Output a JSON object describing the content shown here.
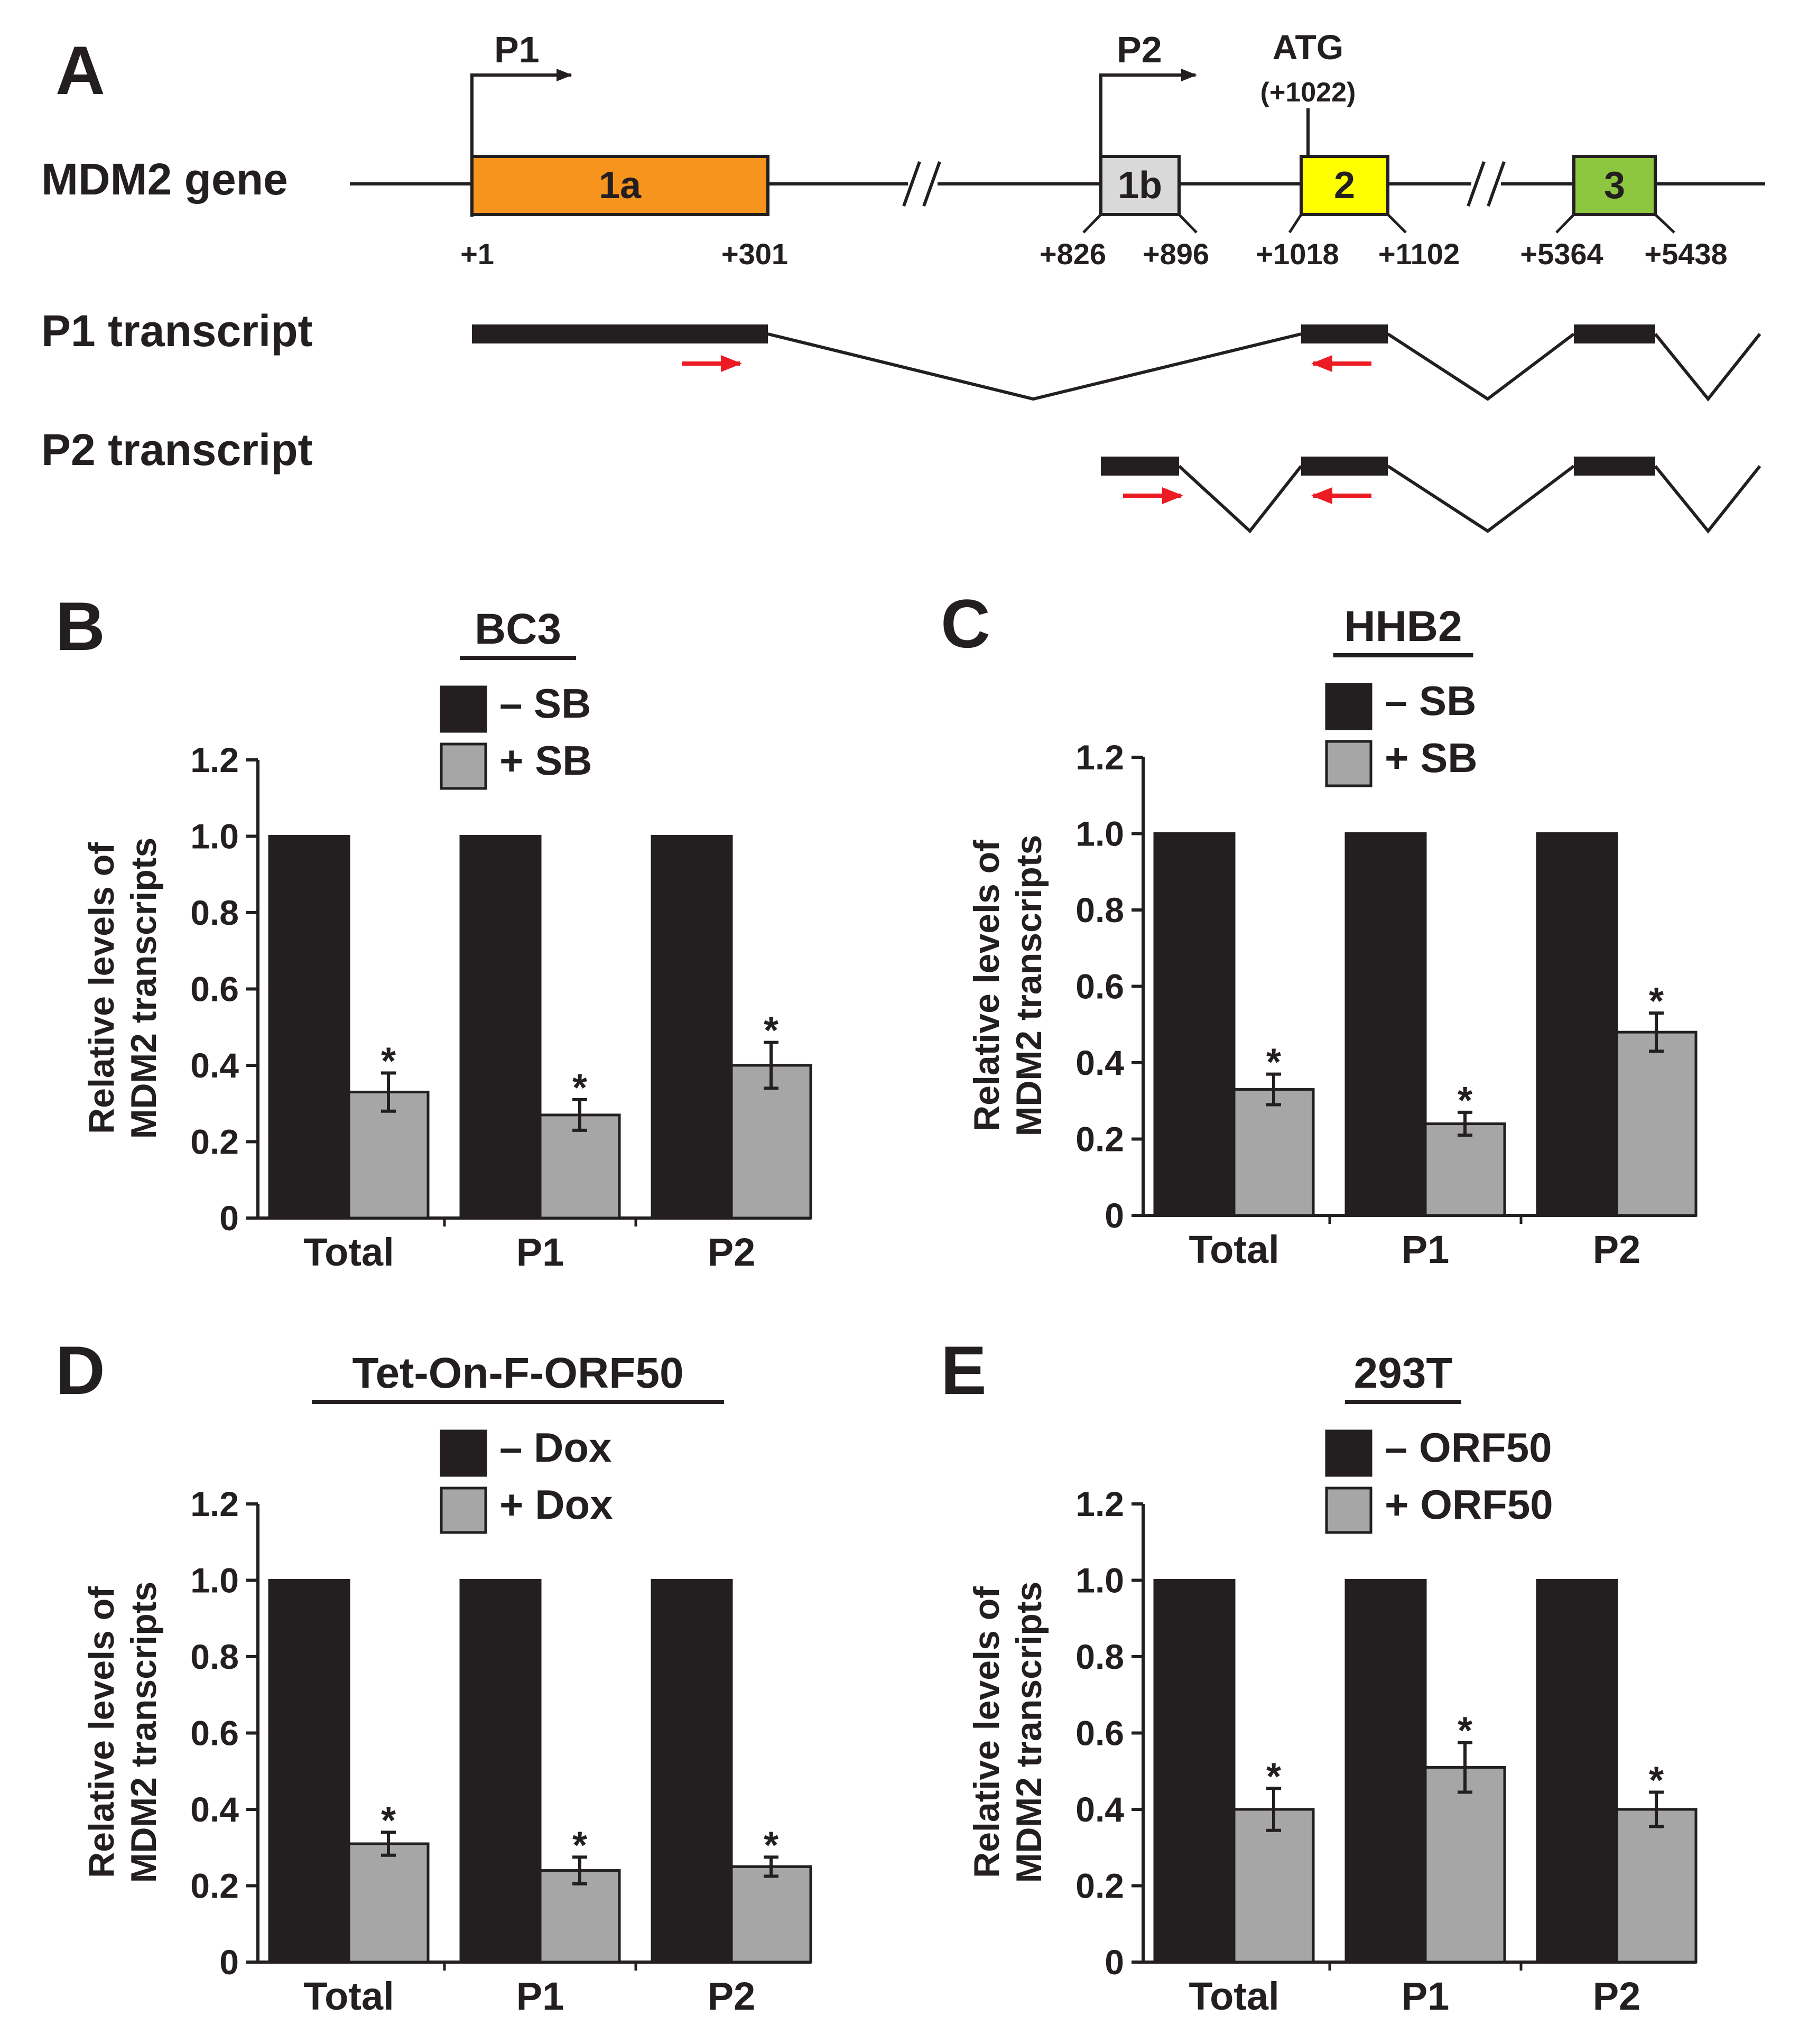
{
  "panel_a": {
    "letter": "A",
    "gene_label": "MDM2 gene",
    "promoters": [
      {
        "name": "P1"
      },
      {
        "name": "P2"
      }
    ],
    "atg": {
      "label": "ATG",
      "position": "(+1022)"
    },
    "exons": [
      {
        "name": "1a",
        "color": "#f7941d",
        "start": "+1",
        "end": "+301"
      },
      {
        "name": "1b",
        "color": "#d9d9d9",
        "start": "+826",
        "end": "+896"
      },
      {
        "name": "2",
        "color": "#ffff00",
        "start": "+1018",
        "end": "+1102"
      },
      {
        "name": "3",
        "color": "#8dc63f",
        "start": "+5364",
        "end": "+5438"
      }
    ],
    "transcripts": [
      {
        "label": "P1 transcript"
      },
      {
        "label": "P2 transcript"
      }
    ],
    "primer_color": "#ed1c24"
  },
  "chart_data": [
    {
      "panel": "B",
      "type": "bar",
      "title": "BC3",
      "categories": [
        "Total",
        "P1",
        "P2"
      ],
      "series": [
        {
          "name": "– SB",
          "color": "#231f20",
          "values": [
            1.0,
            1.0,
            1.0
          ],
          "errors": [
            0,
            0,
            0
          ],
          "significant": [
            false,
            false,
            false
          ]
        },
        {
          "name": "+ SB",
          "color": "#a6a6a6",
          "values": [
            0.33,
            0.27,
            0.4
          ],
          "errors": [
            0.05,
            0.04,
            0.06
          ],
          "significant": [
            true,
            true,
            true
          ]
        }
      ],
      "ylabel": [
        "Relative levels of",
        "MDM2 transcripts"
      ],
      "ylim": [
        0,
        1.2
      ],
      "yticks": [
        0,
        0.2,
        0.4,
        0.6,
        0.8,
        1.0,
        1.2
      ],
      "ytick_labels": [
        "0",
        "0.2",
        "0.4",
        "0.6",
        "0.8",
        "1.0",
        "1.2"
      ],
      "significance_mark": "*"
    },
    {
      "panel": "C",
      "type": "bar",
      "title": "HHB2",
      "categories": [
        "Total",
        "P1",
        "P2"
      ],
      "series": [
        {
          "name": "– SB",
          "color": "#231f20",
          "values": [
            1.0,
            1.0,
            1.0
          ],
          "errors": [
            0,
            0,
            0
          ],
          "significant": [
            false,
            false,
            false
          ]
        },
        {
          "name": "+ SB",
          "color": "#a6a6a6",
          "values": [
            0.33,
            0.24,
            0.48
          ],
          "errors": [
            0.04,
            0.03,
            0.05
          ],
          "significant": [
            true,
            true,
            true
          ]
        }
      ],
      "ylabel": [
        "Relative levels of",
        "MDM2 transcripts"
      ],
      "ylim": [
        0,
        1.2
      ],
      "yticks": [
        0,
        0.2,
        0.4,
        0.6,
        0.8,
        1.0,
        1.2
      ],
      "ytick_labels": [
        "0",
        "0.2",
        "0.4",
        "0.6",
        "0.8",
        "1.0",
        "1.2"
      ],
      "significance_mark": "*"
    },
    {
      "panel": "D",
      "type": "bar",
      "title": "Tet-On-F-ORF50",
      "categories": [
        "Total",
        "P1",
        "P2"
      ],
      "series": [
        {
          "name": "– Dox",
          "color": "#231f20",
          "values": [
            1.0,
            1.0,
            1.0
          ],
          "errors": [
            0,
            0,
            0
          ],
          "significant": [
            false,
            false,
            false
          ]
        },
        {
          "name": "+ Dox",
          "color": "#a6a6a6",
          "values": [
            0.31,
            0.24,
            0.25
          ],
          "errors": [
            0.03,
            0.035,
            0.025
          ],
          "significant": [
            true,
            true,
            true
          ]
        }
      ],
      "ylabel": [
        "Relative levels of",
        "MDM2 transcripts"
      ],
      "ylim": [
        0,
        1.2
      ],
      "yticks": [
        0,
        0.2,
        0.4,
        0.6,
        0.8,
        1.0,
        1.2
      ],
      "ytick_labels": [
        "0",
        "0.2",
        "0.4",
        "0.6",
        "0.8",
        "1.0",
        "1.2"
      ],
      "significance_mark": "*"
    },
    {
      "panel": "E",
      "type": "bar",
      "title": "293T",
      "categories": [
        "Total",
        "P1",
        "P2"
      ],
      "series": [
        {
          "name": "– ORF50",
          "color": "#231f20",
          "values": [
            1.0,
            1.0,
            1.0
          ],
          "errors": [
            0,
            0,
            0
          ],
          "significant": [
            false,
            false,
            false
          ]
        },
        {
          "name": "+ ORF50",
          "color": "#a6a6a6",
          "values": [
            0.4,
            0.51,
            0.4
          ],
          "errors": [
            0.055,
            0.065,
            0.045
          ],
          "significant": [
            true,
            true,
            true
          ]
        }
      ],
      "ylabel": [
        "Relative levels of",
        "MDM2 transcripts"
      ],
      "ylim": [
        0,
        1.2
      ],
      "yticks": [
        0,
        0.2,
        0.4,
        0.6,
        0.8,
        1.0,
        1.2
      ],
      "ytick_labels": [
        "0",
        "0.2",
        "0.4",
        "0.6",
        "0.8",
        "1.0",
        "1.2"
      ],
      "significance_mark": "*"
    }
  ]
}
